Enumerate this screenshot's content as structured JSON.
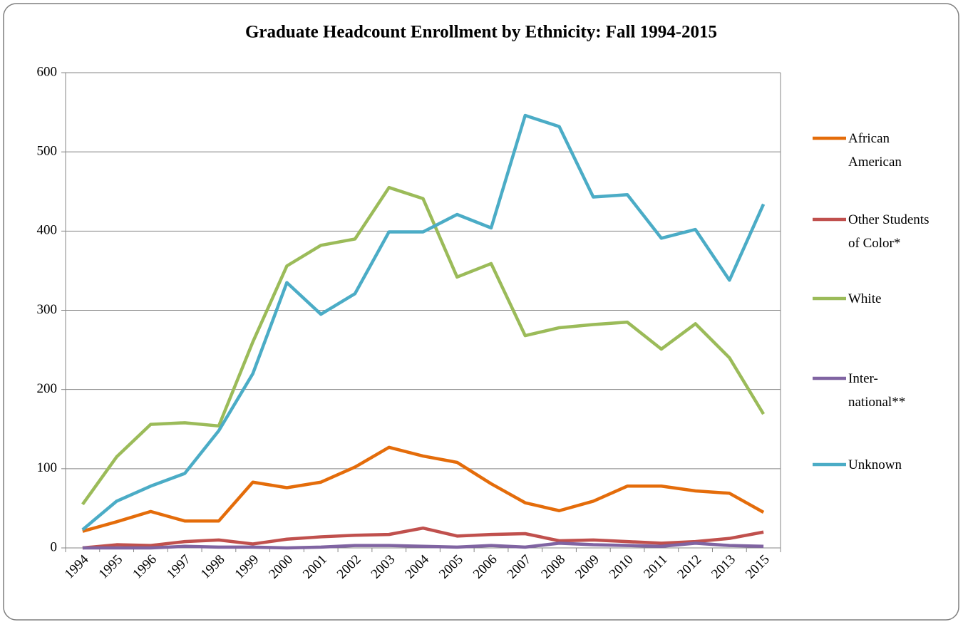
{
  "chart_data": {
    "type": "line",
    "title": "Graduate Headcount Enrollment by Ethnicity: Fall 1994-2015",
    "categories": [
      "1994",
      "1995",
      "1996",
      "1997",
      "1998",
      "1999",
      "2000",
      "2001",
      "2002",
      "2003",
      "2004",
      "2005",
      "2006",
      "2007",
      "2008",
      "2009",
      "2010",
      "2011",
      "2012",
      "2013",
      "2015"
    ],
    "series": [
      {
        "name": "African American",
        "color": "#e46c0a",
        "values": [
          21,
          33,
          46,
          34,
          34,
          83,
          76,
          83,
          102,
          127,
          116,
          108,
          81,
          57,
          47,
          59,
          78,
          78,
          72,
          69,
          45
        ]
      },
      {
        "name": "Other Students of Color*",
        "color": "#c0504d",
        "values": [
          0,
          4,
          3,
          8,
          10,
          5,
          11,
          14,
          16,
          17,
          25,
          15,
          17,
          18,
          9,
          10,
          8,
          6,
          8,
          12,
          20
        ]
      },
      {
        "name": "White",
        "color": "#9bbb59",
        "values": [
          55,
          115,
          156,
          158,
          154,
          260,
          356,
          382,
          390,
          455,
          441,
          342,
          359,
          268,
          278,
          282,
          285,
          251,
          283,
          240,
          169
        ]
      },
      {
        "name": "Inter-national**",
        "color": "#8064a2",
        "values": [
          0,
          0,
          0,
          2,
          1,
          1,
          0,
          1,
          3,
          3,
          2,
          1,
          3,
          1,
          6,
          4,
          3,
          2,
          6,
          3,
          2
        ]
      },
      {
        "name": "Unknown",
        "color": "#4bacc6",
        "values": [
          23,
          59,
          78,
          94,
          148,
          220,
          335,
          295,
          321,
          399,
          399,
          421,
          404,
          546,
          532,
          443,
          446,
          391,
          402,
          338,
          434
        ]
      }
    ],
    "ylim": [
      0,
      600
    ],
    "yticks": [
      0,
      100,
      200,
      300,
      400,
      500,
      600
    ],
    "grid": true,
    "legend": "right"
  }
}
